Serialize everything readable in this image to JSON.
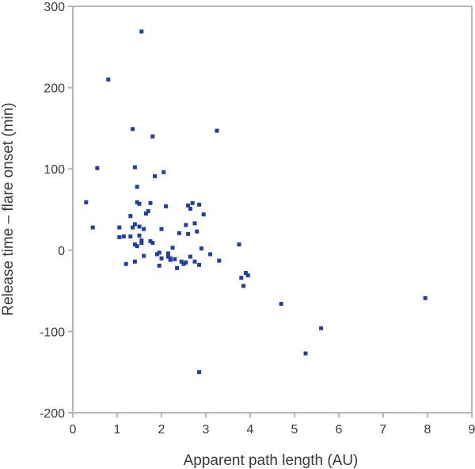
{
  "chart_data": {
    "type": "scatter",
    "title": "",
    "xlabel": "Apparent path length (AU)",
    "ylabel": "Release time – flare onset (min)",
    "xlim": [
      0,
      9
    ],
    "ylim": [
      -200,
      300
    ],
    "xticks": [
      0,
      1,
      2,
      3,
      4,
      5,
      6,
      7,
      8,
      9
    ],
    "yticks": [
      -200,
      -100,
      0,
      100,
      200,
      300
    ],
    "grid": false,
    "legend": "none",
    "marker": "square",
    "marker_color": "#1f3fa6",
    "axis_color": "#b3b9b3",
    "series": [
      {
        "points": [
          [
            0.3,
            59
          ],
          [
            0.45,
            28
          ],
          [
            0.55,
            101
          ],
          [
            0.8,
            210
          ],
          [
            1.05,
            28
          ],
          [
            1.05,
            16
          ],
          [
            1.15,
            17
          ],
          [
            1.2,
            -17
          ],
          [
            1.3,
            42
          ],
          [
            1.3,
            17
          ],
          [
            1.35,
            28
          ],
          [
            1.35,
            149
          ],
          [
            1.4,
            102
          ],
          [
            1.4,
            32
          ],
          [
            1.4,
            -14
          ],
          [
            1.4,
            7
          ],
          [
            1.45,
            78
          ],
          [
            1.45,
            59
          ],
          [
            1.45,
            5
          ],
          [
            1.5,
            57
          ],
          [
            1.5,
            29
          ],
          [
            1.5,
            18
          ],
          [
            1.55,
            12
          ],
          [
            1.55,
            269
          ],
          [
            1.55,
            9
          ],
          [
            1.6,
            26
          ],
          [
            1.6,
            -7
          ],
          [
            1.65,
            45
          ],
          [
            1.7,
            48
          ],
          [
            1.75,
            58
          ],
          [
            1.75,
            11
          ],
          [
            1.8,
            140
          ],
          [
            1.8,
            9
          ],
          [
            1.85,
            91
          ],
          [
            1.9,
            -5
          ],
          [
            1.95,
            -3
          ],
          [
            1.95,
            -19
          ],
          [
            2.0,
            -10
          ],
          [
            2.0,
            26
          ],
          [
            2.05,
            96
          ],
          [
            2.1,
            54
          ],
          [
            2.15,
            -4
          ],
          [
            2.15,
            -8
          ],
          [
            2.2,
            -12
          ],
          [
            2.2,
            -10
          ],
          [
            2.25,
            3
          ],
          [
            2.3,
            -11
          ],
          [
            2.35,
            -22
          ],
          [
            2.4,
            21
          ],
          [
            2.45,
            -14
          ],
          [
            2.5,
            -17
          ],
          [
            2.55,
            -15
          ],
          [
            2.55,
            31
          ],
          [
            2.6,
            20
          ],
          [
            2.6,
            55
          ],
          [
            2.65,
            51
          ],
          [
            2.65,
            -8
          ],
          [
            2.7,
            58
          ],
          [
            2.75,
            -14
          ],
          [
            2.75,
            33
          ],
          [
            2.8,
            23
          ],
          [
            2.85,
            56
          ],
          [
            2.85,
            -150
          ],
          [
            2.85,
            -18
          ],
          [
            2.9,
            2
          ],
          [
            2.95,
            44
          ],
          [
            3.1,
            -5
          ],
          [
            3.25,
            147
          ],
          [
            3.3,
            -13
          ],
          [
            3.75,
            7
          ],
          [
            3.8,
            -34
          ],
          [
            3.85,
            -44
          ],
          [
            3.9,
            -28
          ],
          [
            3.95,
            -31
          ],
          [
            4.7,
            -66
          ],
          [
            5.25,
            -127
          ],
          [
            5.6,
            -96
          ],
          [
            7.95,
            -59
          ]
        ]
      }
    ]
  }
}
